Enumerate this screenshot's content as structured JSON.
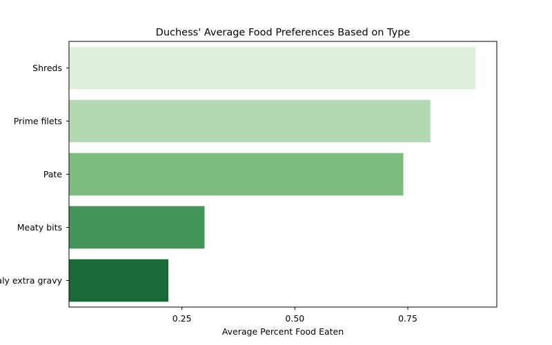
{
  "chart_data": {
    "type": "bar",
    "orientation": "horizontal",
    "title": "Duchess' Average Food Preferences Based on Type",
    "xlabel": "Average Percent Food Eaten",
    "ylabel": "",
    "categories": [
      "Shreds",
      "Prime filets",
      "Pate",
      "Meaty bits",
      "Mealy extra gravy"
    ],
    "values": [
      0.9,
      0.8,
      0.74,
      0.3,
      0.22
    ],
    "colors": [
      "#dfefdb",
      "#b3d9b0",
      "#7fbc7f",
      "#44955a",
      "#1a6a37"
    ],
    "xlim": [
      0.0,
      0.947
    ],
    "xticks": [
      0.25,
      0.5,
      0.75
    ],
    "xtick_labels": [
      "0.25",
      "0.50",
      "0.75"
    ],
    "grid": false,
    "legend": "none"
  }
}
